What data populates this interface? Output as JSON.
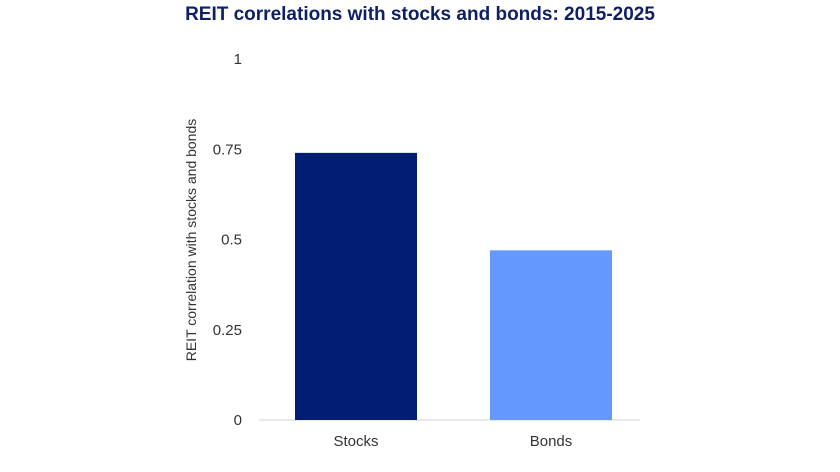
{
  "chart_data": {
    "type": "bar",
    "title": "REIT correlations with stocks and bonds: 2015-2025",
    "xlabel": "",
    "ylabel": "REIT correlation with stocks and bonds",
    "categories": [
      "Stocks",
      "Bonds"
    ],
    "values": [
      0.74,
      0.47
    ],
    "colors": [
      "#001c73",
      "#6699ff"
    ],
    "ylim": [
      0,
      1
    ],
    "yticks": [
      0,
      0.25,
      0.5,
      0.75,
      1
    ],
    "ytick_labels": [
      "0",
      "0.25",
      "0.5",
      "0.75",
      "1"
    ],
    "grid": false
  }
}
